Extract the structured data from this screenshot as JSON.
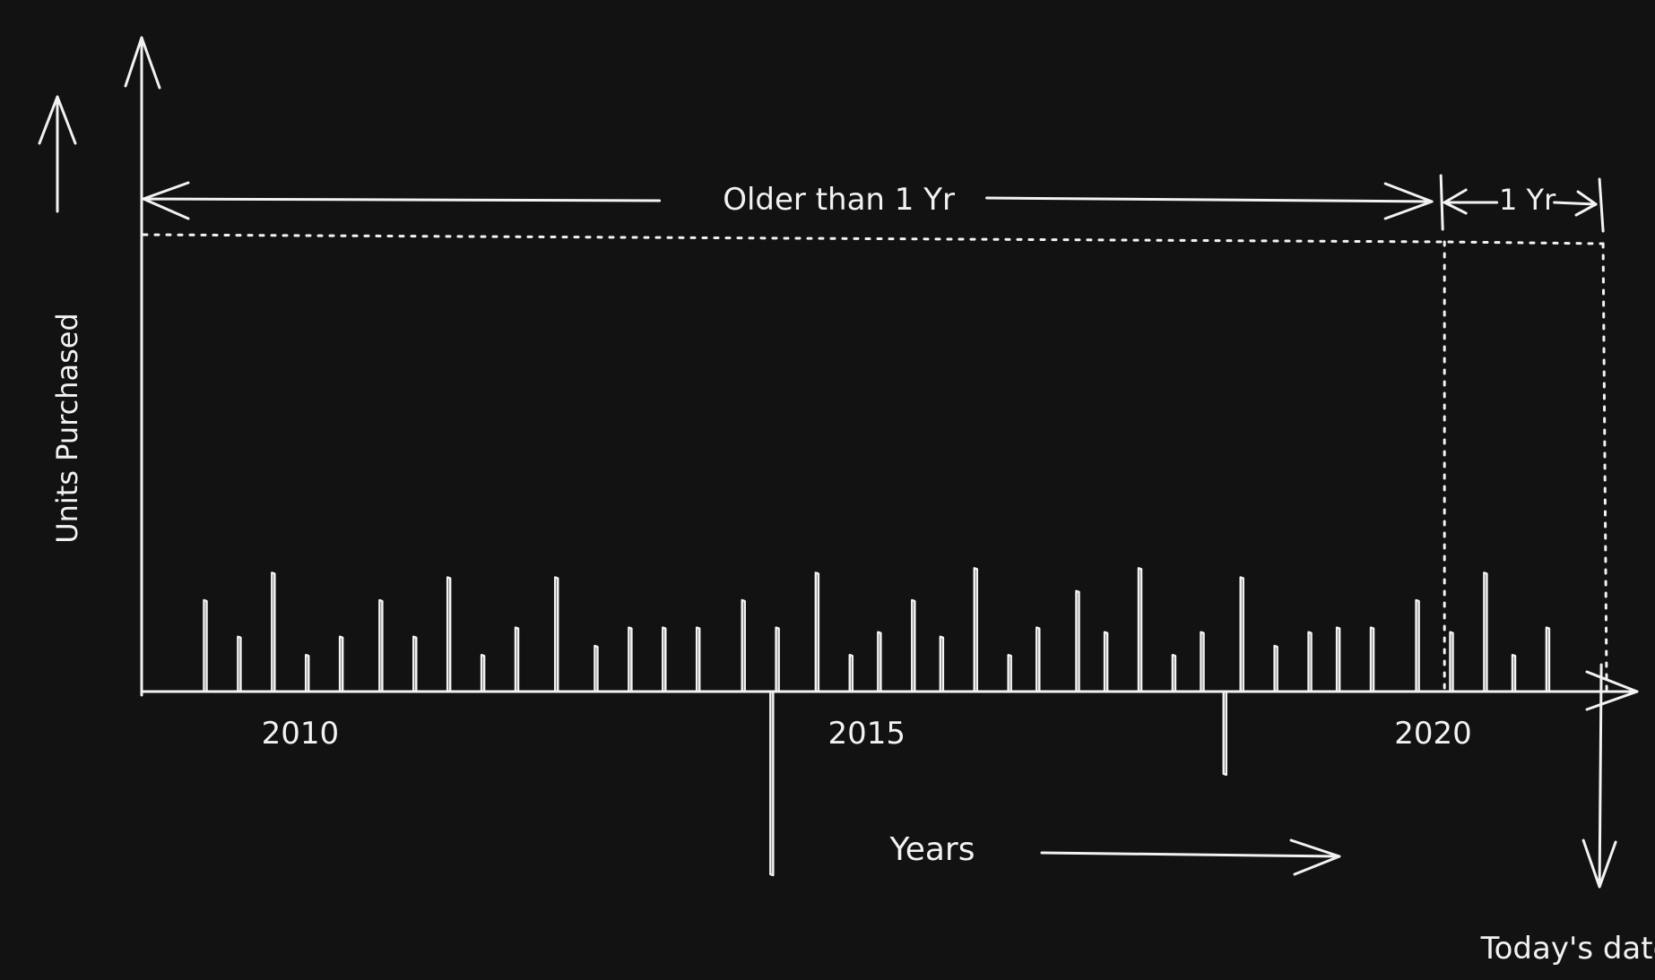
{
  "colors": {
    "background": "#121212",
    "ink": "#f2f2f2"
  },
  "chart_data": {
    "type": "bar",
    "style": "hand-drawn sketch",
    "xlabel": "Years",
    "ylabel": "Units Purchased",
    "x_ticks": [
      {
        "label": "2010",
        "year": 2010
      },
      {
        "label": "2015",
        "year": 2015
      },
      {
        "label": "2020",
        "year": 2020
      }
    ],
    "xlim": [
      2008.6,
      2021.8
    ],
    "ylim": [
      -20,
      50
    ],
    "annotations": {
      "older": "Older than 1 Yr",
      "recent": "1 Yr",
      "today": "Today's date",
      "threshold_year": 2020.1,
      "today_year": 2021.5
    },
    "threshold_level": 50,
    "bars": [
      {
        "x": 2009.15,
        "value": 10
      },
      {
        "x": 2009.45,
        "value": 6
      },
      {
        "x": 2009.75,
        "value": 13
      },
      {
        "x": 2010.05,
        "value": 4
      },
      {
        "x": 2010.35,
        "value": 6
      },
      {
        "x": 2010.7,
        "value": 10
      },
      {
        "x": 2011.0,
        "value": 6
      },
      {
        "x": 2011.3,
        "value": 12.5
      },
      {
        "x": 2011.6,
        "value": 4
      },
      {
        "x": 2011.9,
        "value": 7
      },
      {
        "x": 2012.25,
        "value": 12.5
      },
      {
        "x": 2012.6,
        "value": 5
      },
      {
        "x": 2012.9,
        "value": 7
      },
      {
        "x": 2013.2,
        "value": 7
      },
      {
        "x": 2013.5,
        "value": 7
      },
      {
        "x": 2013.9,
        "value": 10
      },
      {
        "x": 2014.2,
        "value": 7
      },
      {
        "x": 2014.55,
        "value": 13
      },
      {
        "x": 2014.85,
        "value": 4
      },
      {
        "x": 2015.1,
        "value": 6.5
      },
      {
        "x": 2015.4,
        "value": 10
      },
      {
        "x": 2015.65,
        "value": 6
      },
      {
        "x": 2015.95,
        "value": 13.5
      },
      {
        "x": 2016.25,
        "value": 4
      },
      {
        "x": 2016.5,
        "value": 7
      },
      {
        "x": 2016.85,
        "value": 11
      },
      {
        "x": 2017.1,
        "value": 6.5
      },
      {
        "x": 2017.4,
        "value": 13.5
      },
      {
        "x": 2017.7,
        "value": 4
      },
      {
        "x": 2017.95,
        "value": 6.5
      },
      {
        "x": 2018.15,
        "value": -9
      },
      {
        "x": 2018.3,
        "value": 12.5
      },
      {
        "x": 2018.6,
        "value": 5
      },
      {
        "x": 2018.9,
        "value": 6.5
      },
      {
        "x": 2019.15,
        "value": 7
      },
      {
        "x": 2019.45,
        "value": 7
      },
      {
        "x": 2019.85,
        "value": 10
      },
      {
        "x": 2020.15,
        "value": 6.5
      },
      {
        "x": 2020.45,
        "value": 13
      },
      {
        "x": 2020.7,
        "value": 4
      },
      {
        "x": 2021.0,
        "value": 7
      },
      {
        "x": 2014.15,
        "value": -20
      }
    ]
  }
}
